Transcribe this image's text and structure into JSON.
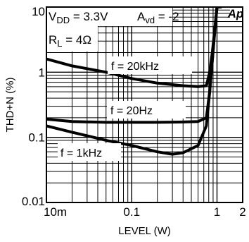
{
  "chart_data": {
    "type": "line",
    "xlabel": "LEVEL (W)",
    "ylabel": "THD+N (%)",
    "x_scale": "log",
    "y_scale": "log",
    "xlim": [
      0.01,
      2
    ],
    "ylim": [
      0.01,
      10
    ],
    "grid": true,
    "x_ticks": [
      {
        "value": 0.01,
        "label": "10m"
      },
      {
        "value": 0.1,
        "label": "0.1"
      },
      {
        "value": 1,
        "label": "1"
      },
      {
        "value": 2,
        "label": "2"
      }
    ],
    "y_ticks": [
      {
        "value": 10,
        "label": "10"
      },
      {
        "value": 1,
        "label": "1"
      },
      {
        "value": 0.1,
        "label": "0.1"
      },
      {
        "value": 0.01,
        "label": "0.01"
      }
    ],
    "annotations": {
      "vdd_sub": "DD",
      "vdd_rest": " = 3.3V",
      "avd_sub": "vd",
      "avd_rest": " = -2",
      "rl_sub": "L",
      "rl_rest": " = 4Ω",
      "logo": "Ap"
    },
    "series": [
      {
        "name": "f = 20kHz",
        "x": [
          0.01,
          0.02,
          0.05,
          0.1,
          0.2,
          0.4,
          0.6,
          0.75,
          0.82,
          0.88,
          0.95,
          1.0,
          1.1
        ],
        "y": [
          1.6,
          1.25,
          1.0,
          0.8,
          0.68,
          0.62,
          0.6,
          0.62,
          1.0,
          2.0,
          5.0,
          10,
          10
        ]
      },
      {
        "name": "f = 20Hz",
        "x": [
          0.01,
          0.02,
          0.05,
          0.1,
          0.2,
          0.4,
          0.6,
          0.75,
          0.82,
          0.88,
          0.95,
          1.0,
          1.1
        ],
        "y": [
          0.19,
          0.175,
          0.17,
          0.17,
          0.17,
          0.172,
          0.175,
          0.2,
          0.5,
          1.5,
          5.0,
          10,
          10
        ]
      },
      {
        "name": "f = 1kHz",
        "x": [
          0.01,
          0.02,
          0.05,
          0.1,
          0.2,
          0.3,
          0.4,
          0.6,
          0.75,
          0.82,
          0.88,
          0.95,
          1.0,
          1.1
        ],
        "y": [
          0.15,
          0.12,
          0.09,
          0.075,
          0.06,
          0.055,
          0.058,
          0.075,
          0.15,
          0.5,
          1.5,
          5.0,
          10,
          10
        ]
      }
    ]
  }
}
